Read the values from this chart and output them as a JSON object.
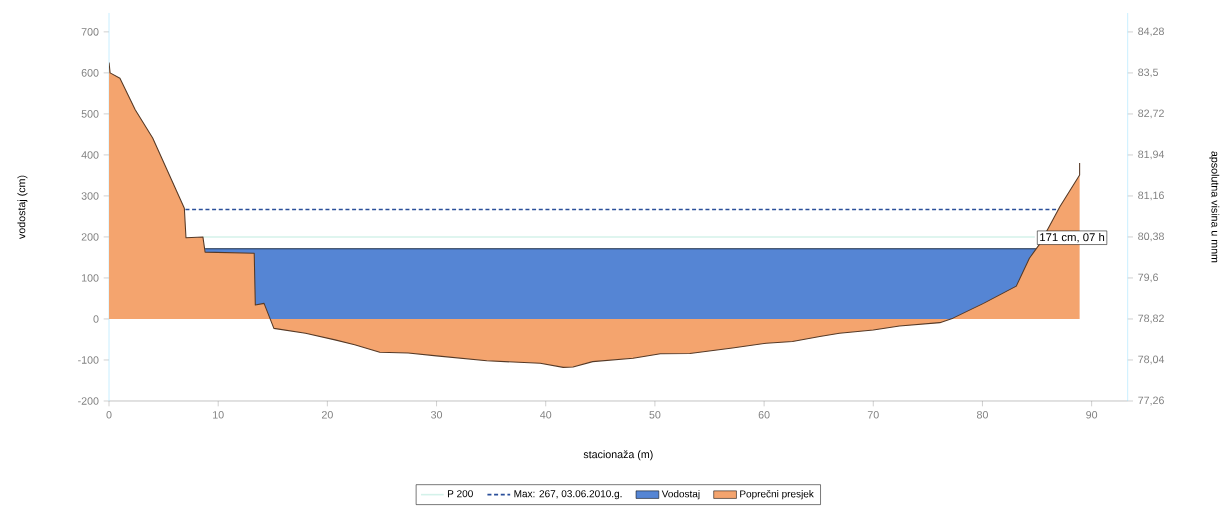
{
  "chart_data": {
    "type": "area",
    "xlabel": "stacionaža (m)",
    "ylabel": "vodostaj (cm)",
    "y2label": "apsolutna visina u mnm",
    "xlim": [
      0,
      93.3
    ],
    "ylim": [
      -200,
      746
    ],
    "y2lim": [
      77.26,
      84.64
    ],
    "xticks": [
      0,
      10,
      20,
      30,
      40,
      50,
      60,
      70,
      80,
      90
    ],
    "yticks": [
      -200,
      -100,
      0,
      100,
      200,
      300,
      400,
      500,
      600,
      700
    ],
    "y2ticks": [
      {
        "value": 77.26,
        "label": "77,26"
      },
      {
        "value": 78.04,
        "label": "78,04"
      },
      {
        "value": 78.82,
        "label": "78,82"
      },
      {
        "value": 79.6,
        "label": "79,6"
      },
      {
        "value": 80.38,
        "label": "80,38"
      },
      {
        "value": 81.16,
        "label": "81,16"
      },
      {
        "value": 81.94,
        "label": "81,94"
      },
      {
        "value": 82.72,
        "label": "82,72"
      },
      {
        "value": 83.5,
        "label": "83,5"
      },
      {
        "value": 84.28,
        "label": "84,28"
      }
    ],
    "series": [
      {
        "name": "P 200",
        "type": "line",
        "line_style": "solid",
        "color": "#d4f2ea",
        "x": [
          8.6,
          84.8
        ],
        "values": [
          200,
          200
        ]
      },
      {
        "name": "Max: 267, 03.06.2010.g.",
        "type": "line",
        "line_style": "dashed",
        "color": "#2a4f9a",
        "x": [
          7.0,
          87.0
        ],
        "values": [
          267,
          267
        ]
      },
      {
        "name": "Vodostaj",
        "color": "#5585d4",
        "x": [
          8.8,
          84.9
        ],
        "values": [
          171,
          171
        ]
      },
      {
        "name": "Poprečni presjek",
        "color": "#f4a46e",
        "x": [
          0,
          0.1,
          1.0,
          2.4,
          4.0,
          6.9,
          7.05,
          8.6,
          8.8,
          13.3,
          13.4,
          14.2,
          15.1,
          18,
          20.7,
          22.5,
          24.8,
          27.4,
          30,
          34.6,
          39.5,
          41.6,
          42.5,
          44.3,
          48,
          50.5,
          53.2,
          57.1,
          60.2,
          62.6,
          65.1,
          66.9,
          70.0,
          72.4,
          76.1,
          77.3,
          80.1,
          83.1,
          84.3,
          85.3,
          87.1,
          88.9,
          88.9
        ],
        "values": [
          625,
          600,
          587,
          510,
          441,
          270,
          198,
          200,
          163,
          160,
          34,
          38,
          -23,
          -35,
          -51,
          -63,
          -81,
          -83,
          -90,
          -102,
          -108,
          -118,
          -117,
          -104,
          -96,
          -85,
          -84,
          -71,
          -59,
          -55,
          -43,
          -35,
          -27,
          -17,
          -9,
          2,
          38,
          80,
          148,
          185,
          274,
          351,
          380
        ]
      }
    ],
    "annotations": [
      {
        "text": "171 cm, 07 h",
        "x": 85,
        "y": 171
      }
    ],
    "grid": false,
    "marker": "none",
    "legend": "bottom"
  }
}
